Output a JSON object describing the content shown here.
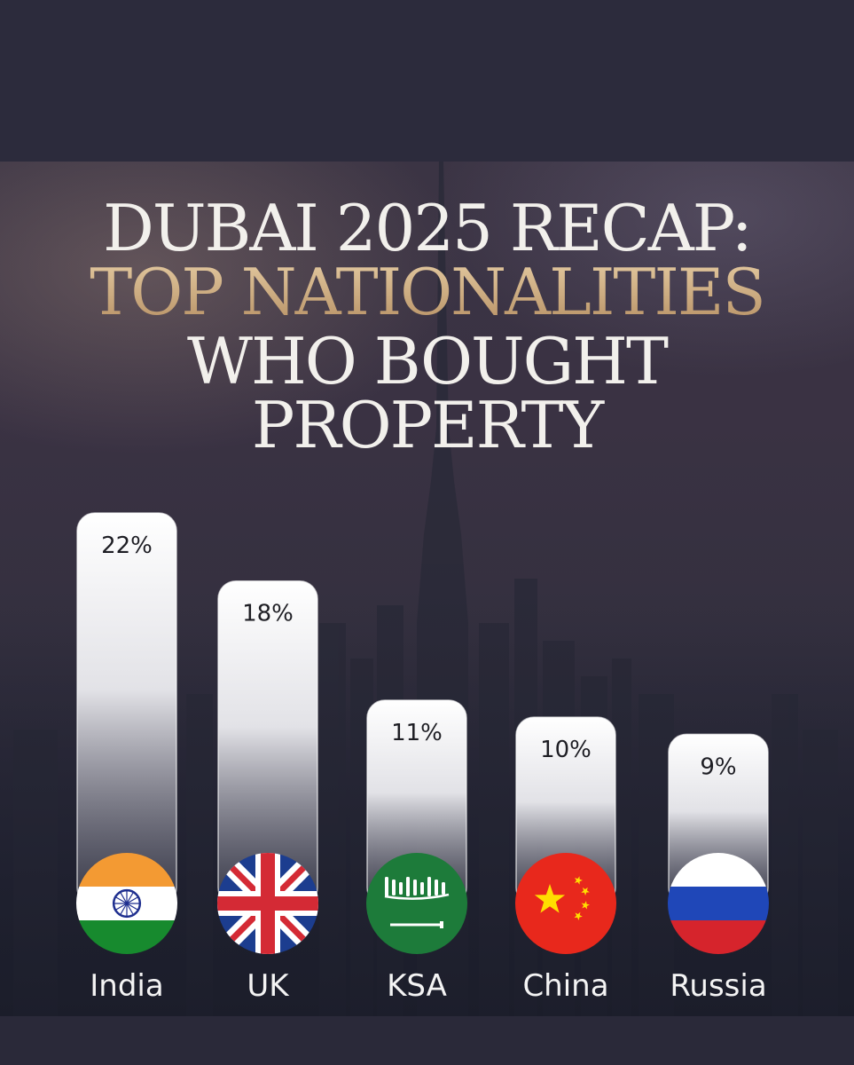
{
  "title": {
    "line1": "DUBAI 2025 RECAP:",
    "line2": "TOP NATIONALITIES",
    "line3": "WHO BOUGHT",
    "line4": "PROPERTY"
  },
  "colors": {
    "title_white": "#f2f0ec",
    "title_gold": "#d8b98e",
    "bar_top": "#ffffff",
    "bar_bottom": "#bfbfc8"
  },
  "chart_data": {
    "type": "bar",
    "categories": [
      "India",
      "UK",
      "KSA",
      "China",
      "Russia"
    ],
    "values": [
      22,
      18,
      11,
      10,
      9
    ],
    "value_labels": [
      "22%",
      "18%",
      "11%",
      "10%",
      "9%"
    ],
    "unit": "%",
    "flags": [
      "india-flag-icon",
      "uk-flag-icon",
      "saudi-flag-icon",
      "china-flag-icon",
      "russia-flag-icon"
    ],
    "title": "DUBAI 2025 RECAP: TOP NATIONALITIES WHO BOUGHT PROPERTY",
    "xlabel": "",
    "ylabel": "",
    "grid": false,
    "legend": "none"
  }
}
